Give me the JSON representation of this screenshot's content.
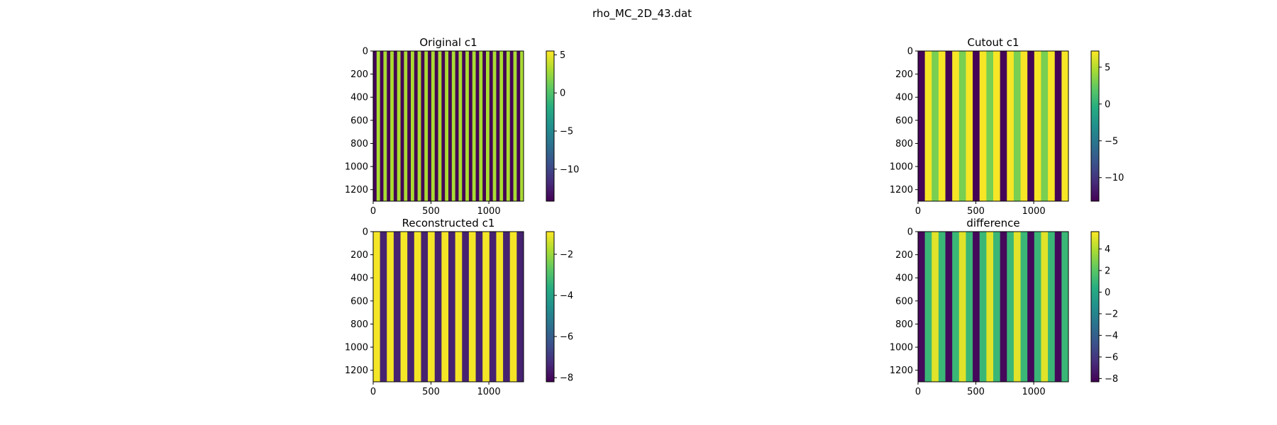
{
  "figure": {
    "suptitle": "rho_MC_2D_43.dat"
  },
  "colormap": {
    "name": "viridis",
    "stops": [
      "#440154",
      "#472c7a",
      "#3b518b",
      "#2c718e",
      "#21908d",
      "#27ad81",
      "#5cc863",
      "#aadc32",
      "#fde725"
    ]
  },
  "chart_data": [
    {
      "type": "heatmap",
      "title": "Original c1",
      "xlim": [
        0,
        1300
      ],
      "ylim": [
        1300,
        0
      ],
      "xticks": [
        0,
        500,
        1000
      ],
      "yticks": [
        0,
        200,
        400,
        600,
        800,
        1000,
        1200
      ],
      "pattern": "vertical-stripes",
      "stripe_count": 44,
      "stripe_values": [
        -14,
        3
      ],
      "colorbar": {
        "range": [
          -14.2,
          5.5
        ],
        "ticks": [
          5,
          0,
          -5,
          -10
        ],
        "tick_labels": [
          "5",
          "0",
          "−5",
          "−10"
        ]
      }
    },
    {
      "type": "heatmap",
      "title": "Cutout c1",
      "xlim": [
        0,
        1300
      ],
      "ylim": [
        1300,
        0
      ],
      "xticks": [
        0,
        500,
        1000
      ],
      "yticks": [
        0,
        200,
        400,
        600,
        800,
        1000,
        1200
      ],
      "pattern": "vertical-stripes",
      "stripe_count": 22,
      "stripe_values": [
        -13,
        7,
        3,
        7
      ],
      "colorbar": {
        "range": [
          -13.2,
          7.2
        ],
        "ticks": [
          5,
          0,
          -5,
          -10
        ],
        "tick_labels": [
          "5",
          "0",
          "−5",
          "−10"
        ]
      }
    },
    {
      "type": "heatmap",
      "title": "Reconstructed c1",
      "xlim": [
        0,
        1300
      ],
      "ylim": [
        1300,
        0
      ],
      "xticks": [
        0,
        500,
        1000
      ],
      "yticks": [
        0,
        200,
        400,
        600,
        800,
        1000,
        1200
      ],
      "pattern": "vertical-stripes",
      "stripe_count": 22,
      "stripe_values": [
        -1.0,
        -7.5
      ],
      "colorbar": {
        "range": [
          -8.2,
          -0.9
        ],
        "ticks": [
          -2,
          -4,
          -6,
          -8
        ],
        "tick_labels": [
          "−2",
          "−4",
          "−6",
          "−8"
        ]
      }
    },
    {
      "type": "heatmap",
      "title": "difference",
      "xlim": [
        0,
        1300
      ],
      "ylim": [
        1300,
        0
      ],
      "xticks": [
        0,
        500,
        1000
      ],
      "yticks": [
        0,
        200,
        400,
        600,
        800,
        1000,
        1200
      ],
      "pattern": "vertical-stripes",
      "stripe_count": 22,
      "stripe_values": [
        -8,
        1,
        5,
        1
      ],
      "colorbar": {
        "range": [
          -8.3,
          5.6
        ],
        "ticks": [
          4,
          2,
          0,
          -2,
          -4,
          -6,
          -8
        ],
        "tick_labels": [
          "4",
          "2",
          "0",
          "−2",
          "−4",
          "−6",
          "−8"
        ]
      }
    }
  ]
}
